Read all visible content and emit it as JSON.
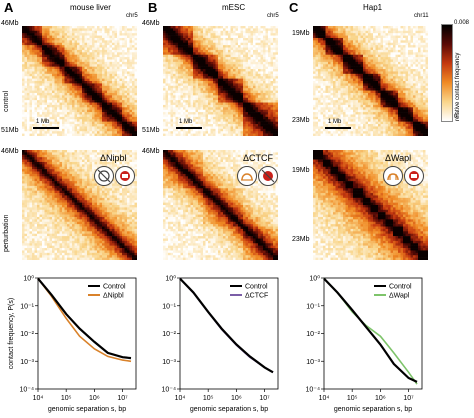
{
  "panels": [
    {
      "letter": "A",
      "title": "mouse liver",
      "chr": "chr5",
      "top_mb": "46Mb",
      "bottom_mb": "51Mb",
      "scale": "1 Mb",
      "perturbation": "ΔNipbl",
      "legend": [
        "Control",
        "ΔNipbl"
      ],
      "pert_color": "#d9822b"
    },
    {
      "letter": "B",
      "title": "mESC",
      "chr": "chr5",
      "top_mb": "46Mb",
      "bottom_mb": "51Mb",
      "scale": "1 Mb",
      "perturbation": "ΔCTCF",
      "legend": [
        "Control",
        "ΔCTCF"
      ],
      "pert_color": "#7b5ea7"
    },
    {
      "letter": "C",
      "title": "Hap1",
      "chr": "chr11",
      "top_mb": "19Mb",
      "bottom_mb": "23Mb",
      "scale": "1 Mb",
      "perturbation": "ΔWapl",
      "legend": [
        "Control",
        "ΔWapl"
      ],
      "pert_color": "#7ec46b"
    }
  ],
  "row_labels": {
    "control": "control",
    "perturbation": "perturbation"
  },
  "colorbar": {
    "label": "relative contact frequency",
    "max": "0.008",
    "min": "0",
    "colors": [
      "#ffffff",
      "#f9d58a",
      "#f08a24",
      "#c4380f",
      "#5a0a06",
      "#000000"
    ]
  },
  "chart_data": [
    {
      "type": "line",
      "title": "",
      "xlabel": "genomic separation s, bp",
      "ylabel": "contact frequency, P(s)",
      "xscale": "log",
      "yscale": "log",
      "xlim": [
        10000,
        30000000
      ],
      "ylim": [
        0.0001,
        1
      ],
      "xticks": [
        "10^4",
        "10^5",
        "10^6",
        "10^7"
      ],
      "yticks": [
        "10^0",
        "10^-1",
        "10^-2",
        "10^-3",
        "10^-4"
      ],
      "series": [
        {
          "name": "Control",
          "color": "#000000",
          "x": [
            10000,
            30000,
            100000,
            300000,
            1000000,
            3000000,
            10000000,
            20000000
          ],
          "y": [
            0.95,
            0.25,
            0.05,
            0.015,
            0.005,
            0.002,
            0.0014,
            0.0013
          ]
        },
        {
          "name": "ΔNipbl",
          "color": "#d9822b",
          "x": [
            10000,
            30000,
            100000,
            300000,
            1000000,
            3000000,
            10000000,
            20000000
          ],
          "y": [
            0.95,
            0.22,
            0.035,
            0.008,
            0.0028,
            0.0015,
            0.0011,
            0.001
          ]
        }
      ]
    },
    {
      "type": "line",
      "title": "",
      "xlabel": "genomic separation s, bp",
      "ylabel": "",
      "xscale": "log",
      "yscale": "log",
      "xlim": [
        10000,
        30000000
      ],
      "ylim": [
        0.0001,
        1
      ],
      "xticks": [
        "10^4",
        "10^5",
        "10^6",
        "10^7"
      ],
      "yticks": [
        "10^0",
        "10^-1",
        "10^-2",
        "10^-3",
        "10^-4"
      ],
      "series": [
        {
          "name": "Control",
          "color": "#000000",
          "x": [
            10000,
            30000,
            100000,
            300000,
            1000000,
            3000000,
            10000000,
            20000000
          ],
          "y": [
            0.95,
            0.3,
            0.06,
            0.015,
            0.004,
            0.0015,
            0.0006,
            0.0004
          ]
        },
        {
          "name": "ΔCTCF",
          "color": "#7b5ea7",
          "x": [
            10000,
            30000,
            100000,
            300000,
            1000000,
            3000000,
            10000000,
            20000000
          ],
          "y": [
            0.95,
            0.29,
            0.058,
            0.014,
            0.0038,
            0.0014,
            0.0006,
            0.0004
          ]
        }
      ]
    },
    {
      "type": "line",
      "title": "",
      "xlabel": "genomic separation s, bp",
      "ylabel": "",
      "xscale": "log",
      "yscale": "log",
      "xlim": [
        10000,
        30000000
      ],
      "ylim": [
        0.0001,
        1
      ],
      "xticks": [
        "10^4",
        "10^5",
        "10^6",
        "10^7"
      ],
      "yticks": [
        "10^0",
        "10^-1",
        "10^-2",
        "10^-3",
        "10^-4"
      ],
      "series": [
        {
          "name": "Control",
          "color": "#000000",
          "x": [
            10000,
            30000,
            100000,
            300000,
            1000000,
            3000000,
            10000000,
            20000000
          ],
          "y": [
            0.95,
            0.3,
            0.07,
            0.018,
            0.004,
            0.0008,
            0.00025,
            0.00018
          ]
        },
        {
          "name": "ΔWapl",
          "color": "#7ec46b",
          "x": [
            10000,
            30000,
            100000,
            300000,
            1000000,
            3000000,
            10000000,
            20000000
          ],
          "y": [
            0.95,
            0.3,
            0.06,
            0.02,
            0.008,
            0.002,
            0.0004,
            0.00015
          ]
        }
      ]
    }
  ]
}
